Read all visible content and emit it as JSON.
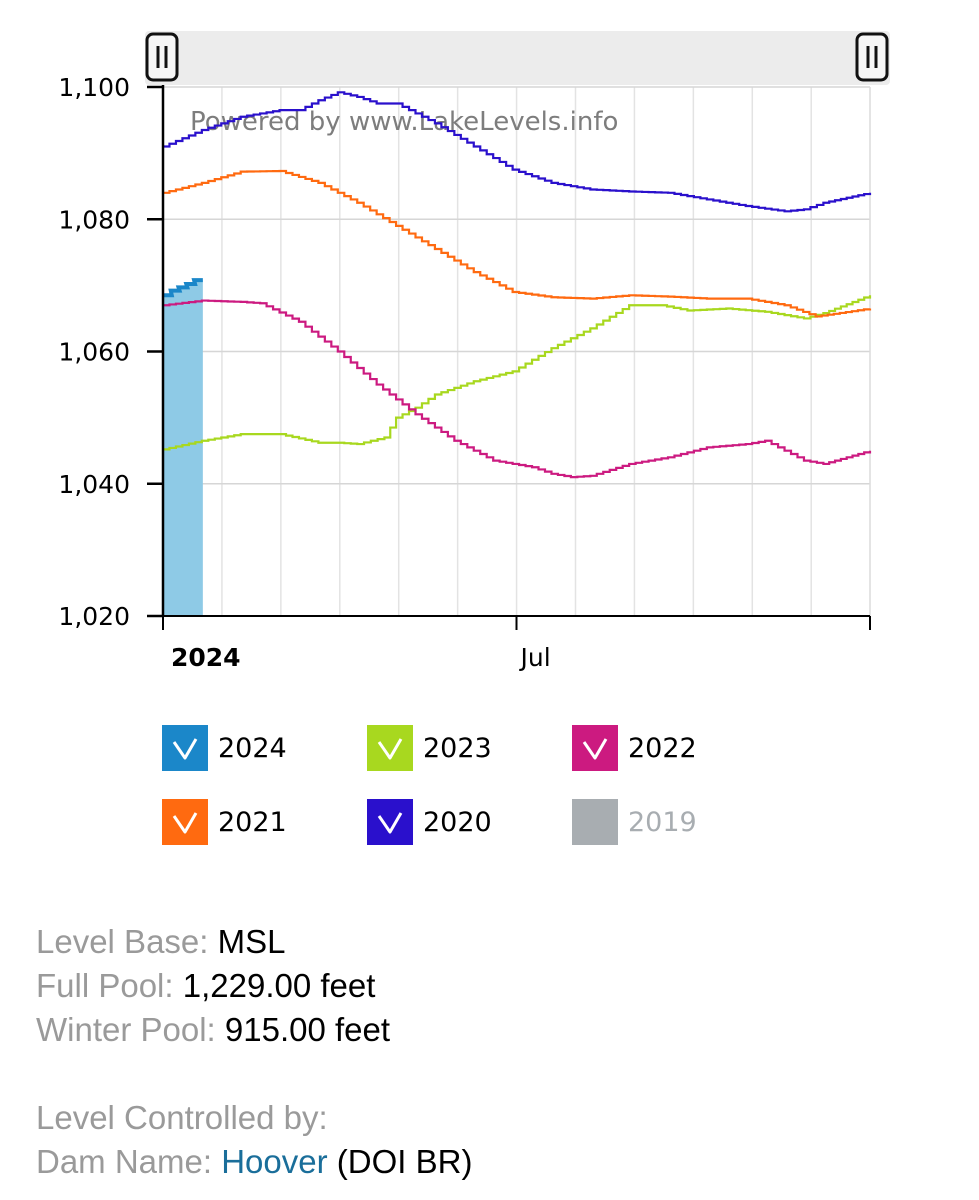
{
  "watermark": "Powered by www.LakeLevels.info",
  "colors": {
    "y2024_bar": "#8ecae6",
    "y2024_line": "#1b87c9",
    "y2023": "#a8d81f",
    "y2022": "#cc1a80",
    "y2021": "#ff6a10",
    "y2020": "#2a10cc",
    "y2019": "#a8adb1"
  },
  "chart_data": {
    "type": "line",
    "title": "",
    "xlabel": "",
    "ylabel": "",
    "ylim": [
      1020,
      1100
    ],
    "y_ticks": [
      1020,
      1040,
      1060,
      1080,
      1100
    ],
    "y_tick_labels": [
      "1,020",
      "1,040",
      "1,060",
      "1,080",
      "1,100"
    ],
    "x_domain_days": [
      0,
      182
    ],
    "x_tick_labels": [
      {
        "label": "2024",
        "day": 0,
        "bold": true
      },
      {
        "label": "Jul",
        "day": 91,
        "bold": false
      }
    ],
    "grid": true,
    "legend_position": "bottom",
    "series": [
      {
        "name": "2024",
        "kind": "bar",
        "color_key": "y2024_bar",
        "x": [
          0,
          2,
          4,
          6,
          8
        ],
        "y": [
          1068.5,
          1069.2,
          1069.7,
          1070.2,
          1070.8
        ]
      },
      {
        "name": "2023",
        "kind": "line",
        "color_key": "y2023",
        "x": [
          0,
          10,
          20,
          30,
          40,
          45,
          50,
          57,
          60,
          65,
          70,
          80,
          90,
          100,
          110,
          120,
          128,
          135,
          145,
          155,
          165,
          170,
          182
        ],
        "y": [
          1045.2,
          1046.5,
          1047.5,
          1047.5,
          1046.2,
          1046.2,
          1046.0,
          1047.0,
          1050.0,
          1051.5,
          1053.5,
          1055.5,
          1057.0,
          1060.5,
          1063.5,
          1067.0,
          1067.0,
          1066.2,
          1066.5,
          1066.0,
          1065.0,
          1065.8,
          1068.5
        ]
      },
      {
        "name": "2022",
        "kind": "line",
        "color_key": "y2022",
        "x": [
          0,
          10,
          20,
          25,
          35,
          45,
          55,
          65,
          75,
          85,
          95,
          100,
          105,
          110,
          120,
          130,
          140,
          150,
          155,
          160,
          165,
          170,
          182
        ],
        "y": [
          1067.0,
          1067.7,
          1067.5,
          1067.3,
          1064.5,
          1060.0,
          1055.0,
          1050.5,
          1046.5,
          1043.5,
          1042.5,
          1041.5,
          1041.0,
          1041.2,
          1043.0,
          1044.0,
          1045.5,
          1046.0,
          1046.5,
          1045.0,
          1043.5,
          1043.0,
          1045.0
        ]
      },
      {
        "name": "2021",
        "kind": "line",
        "color_key": "y2021",
        "x": [
          0,
          10,
          20,
          30,
          40,
          50,
          60,
          70,
          80,
          90,
          100,
          110,
          120,
          130,
          140,
          150,
          160,
          168,
          182
        ],
        "y": [
          1084.0,
          1085.5,
          1087.2,
          1087.3,
          1085.5,
          1082.5,
          1079.0,
          1075.5,
          1072.0,
          1069.0,
          1068.2,
          1068.0,
          1068.5,
          1068.3,
          1068.0,
          1068.0,
          1067.0,
          1065.3,
          1066.5
        ]
      },
      {
        "name": "2020",
        "kind": "line",
        "color_key": "y2020",
        "x": [
          0,
          10,
          20,
          30,
          35,
          40,
          45,
          50,
          55,
          60,
          70,
          80,
          90,
          100,
          110,
          120,
          130,
          140,
          150,
          160,
          165,
          170,
          182
        ],
        "y": [
          1091.0,
          1093.5,
          1095.5,
          1096.5,
          1096.5,
          1098.0,
          1099.2,
          1098.5,
          1097.5,
          1097.5,
          1094.5,
          1091.0,
          1087.5,
          1085.5,
          1084.5,
          1084.2,
          1084.0,
          1083.0,
          1082.0,
          1081.2,
          1081.5,
          1082.5,
          1084.0
        ]
      }
    ]
  },
  "legend": [
    {
      "label": "2024",
      "color_key": "y2024_line",
      "enabled": true
    },
    {
      "label": "2023",
      "color_key": "y2023",
      "enabled": true
    },
    {
      "label": "2022",
      "color_key": "y2022",
      "enabled": true
    },
    {
      "label": "2021",
      "color_key": "y2021",
      "enabled": true
    },
    {
      "label": "2020",
      "color_key": "y2020",
      "enabled": true
    },
    {
      "label": "2019",
      "color_key": "y2019",
      "enabled": false
    }
  ],
  "info": {
    "level_base_key": "Level Base:",
    "level_base_val": "MSL",
    "full_pool_key": "Full Pool:",
    "full_pool_val": "1,229.00 feet",
    "winter_pool_key": "Winter Pool:",
    "winter_pool_val": "915.00 feet",
    "controlled_by": "Level Controlled by:",
    "dam_key": "Dam Name:",
    "dam_link": "Hoover",
    "dam_agency": "(DOI BR)"
  }
}
